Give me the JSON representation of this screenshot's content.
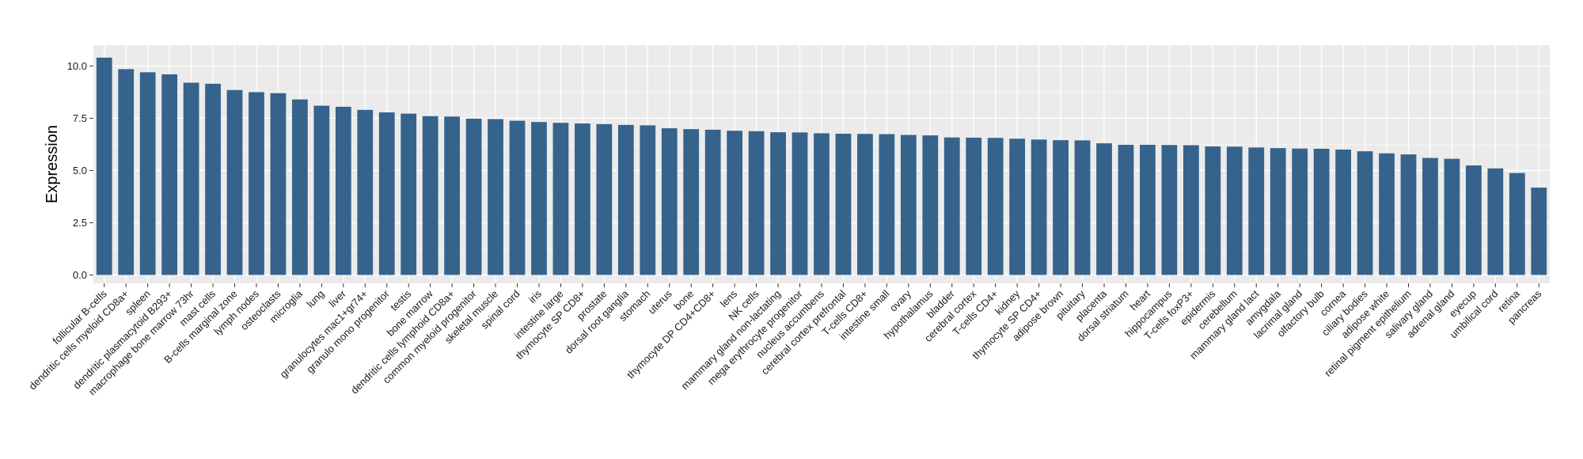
{
  "chart_data": {
    "type": "bar",
    "title": "",
    "xlabel": "",
    "ylabel": "Expression",
    "ylim": [
      -0.4,
      11.0
    ],
    "yticks": [
      0.0,
      2.5,
      5.0,
      7.5,
      10.0
    ],
    "ytick_labels": [
      "0.0",
      "2.5",
      "5.0",
      "7.5",
      "10.0"
    ],
    "grid": true,
    "legend": "none",
    "colors": {
      "bar": "#35638c",
      "panel": "#ebebeb",
      "grid_major": "#ffffff",
      "grid_minor": "#f5f5f5",
      "text": "#1a1a1a"
    },
    "categories": [
      "follicular B-cells",
      "dendritic cells myeloid CD8a+",
      "spleen",
      "dendritic plasmacytoid B293+",
      "macrophage bone marrow 73hr",
      "mast cells",
      "B-cells marginal zone",
      "lymph nodes",
      "osteoclasts",
      "microglia",
      "lung",
      "liver",
      "granulocytes mac1+gr74+",
      "granulo mono progenitor",
      "testis",
      "bone marrow",
      "dendritic cells lymphoid CD8a+",
      "common myeloid progenitor",
      "skeletal muscle",
      "spinal cord",
      "iris",
      "intestine large",
      "thymocyte SP CD8+",
      "prostate",
      "dorsal root ganglia",
      "stomach",
      "uterus",
      "bone",
      "thymocyte DP CD4+CD8+",
      "lens",
      "NK cells",
      "mammary gland non-lactating",
      "mega erythrocyte progenitor",
      "nucleus accumbens",
      "cerebral cortex prefrontal",
      "T-cells CD8+",
      "intestine small",
      "ovary",
      "hypothalamus",
      "bladder",
      "cerebral cortex",
      "T-cells CD4+",
      "kidney",
      "thymocyte SP CD4+",
      "adipose brown",
      "pituitary",
      "placenta",
      "dorsal striatum",
      "heart",
      "hippocampus",
      "T-cells foxP3+",
      "epidermis",
      "cerebellum",
      "mammary gland lact",
      "amygdala",
      "lacrimal gland",
      "olfactory bulb",
      "cornea",
      "ciliary bodies",
      "adipose white",
      "retinal pigment epithelium",
      "salivary gland",
      "adrenal gland",
      "eyecup",
      "umbilical cord",
      "retina",
      "pancreas"
    ],
    "values": [
      10.4,
      9.85,
      9.7,
      9.6,
      9.2,
      9.15,
      8.85,
      8.75,
      8.7,
      8.4,
      8.1,
      8.05,
      7.9,
      7.78,
      7.72,
      7.6,
      7.58,
      7.48,
      7.46,
      7.38,
      7.32,
      7.28,
      7.25,
      7.22,
      7.18,
      7.16,
      7.02,
      6.98,
      6.95,
      6.9,
      6.88,
      6.83,
      6.82,
      6.78,
      6.76,
      6.75,
      6.74,
      6.7,
      6.68,
      6.58,
      6.57,
      6.56,
      6.52,
      6.48,
      6.45,
      6.44,
      6.3,
      6.23,
      6.23,
      6.22,
      6.21,
      6.15,
      6.14,
      6.1,
      6.07,
      6.05,
      6.04,
      6.0,
      5.92,
      5.82,
      5.77,
      5.6,
      5.56,
      5.24,
      5.1,
      4.88,
      4.18
    ]
  }
}
